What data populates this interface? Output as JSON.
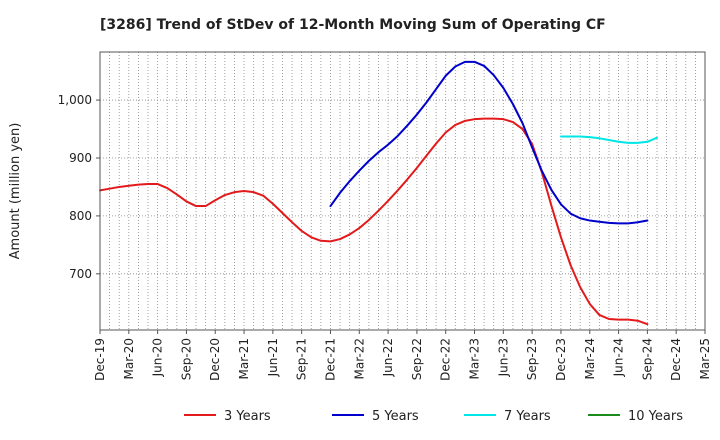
{
  "chart_data": {
    "type": "line",
    "title": "[3286]  Trend of StDev of 12-Month Moving Sum of Operating CF",
    "xlabel": "",
    "ylabel": "Amount (million yen)",
    "ylim": [
      603,
      1083
    ],
    "yticks": [
      700,
      800,
      900,
      1000
    ],
    "ytick_labels": [
      "700",
      "800",
      "900",
      "1,000"
    ],
    "x_tick_labels": [
      "Dec-19",
      "Mar-20",
      "Jun-20",
      "Sep-20",
      "Dec-20",
      "Mar-21",
      "Jun-21",
      "Sep-21",
      "Dec-21",
      "Mar-22",
      "Jun-22",
      "Sep-22",
      "Dec-22",
      "Mar-23",
      "Jun-23",
      "Sep-23",
      "Dec-23",
      "Mar-24",
      "Jun-24",
      "Sep-24",
      "Dec-24",
      "Mar-25"
    ],
    "x_start_label": "Dec-19",
    "x_months_total": 63,
    "grid": true,
    "legend_position": "bottom",
    "series": [
      {
        "name": "3 Years",
        "color": "#e31a1c",
        "start_month": 0,
        "values": [
          844,
          847,
          850,
          852,
          854,
          855,
          855,
          848,
          837,
          825,
          817,
          817,
          827,
          836,
          841,
          843,
          841,
          835,
          821,
          805,
          789,
          774,
          763,
          757,
          756,
          760,
          768,
          779,
          793,
          809,
          826,
          844,
          863,
          883,
          904,
          925,
          944,
          957,
          964,
          967,
          968,
          968,
          967,
          962,
          950,
          924,
          876,
          818,
          763,
          715,
          677,
          648,
          629,
          622,
          621,
          621,
          619,
          613
        ]
      },
      {
        "name": "5 Years",
        "color": "#0000cc",
        "start_month": 24,
        "values": [
          817,
          840,
          860,
          878,
          895,
          910,
          923,
          938,
          956,
          975,
          996,
          1019,
          1042,
          1058,
          1066,
          1066,
          1059,
          1043,
          1021,
          993,
          960,
          918,
          878,
          845,
          820,
          804,
          796,
          792,
          790,
          788,
          787,
          787,
          789,
          792
        ]
      },
      {
        "name": "7 Years",
        "color": "#00e5e5",
        "start_month": 48,
        "values": [
          937,
          937,
          937,
          936,
          934,
          931,
          928,
          926,
          926,
          928,
          935
        ]
      },
      {
        "name": "10 Years",
        "color": "#1a8a1a",
        "start_month": 0,
        "values": []
      }
    ]
  }
}
